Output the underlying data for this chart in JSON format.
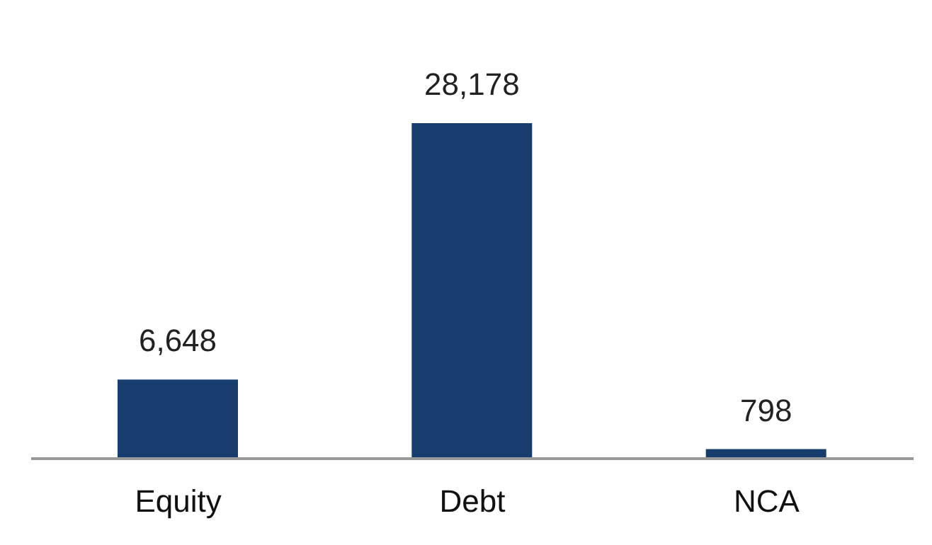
{
  "chart_data": {
    "type": "bar",
    "categories": [
      "Equity",
      "Debt",
      "NCA"
    ],
    "values": [
      6648,
      28178,
      798
    ],
    "value_labels": [
      "6,648",
      "28,178",
      "798"
    ],
    "color": "#173c6e",
    "grid": false
  }
}
